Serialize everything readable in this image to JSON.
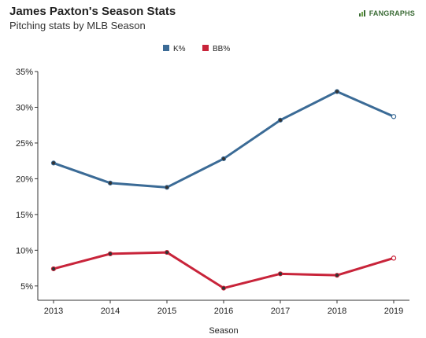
{
  "header": {
    "title": "James Paxton's Season Stats",
    "subtitle": "Pitching stats by MLB Season",
    "logo_text": "FANGRAPHS"
  },
  "chart_data": {
    "type": "line",
    "x": [
      2013,
      2014,
      2015,
      2016,
      2017,
      2018,
      2019
    ],
    "xlabel": "Season",
    "ylabel": "",
    "ylim": [
      0.03,
      0.35
    ],
    "yticks": [
      0.05,
      0.1,
      0.15,
      0.2,
      0.25,
      0.3,
      0.35
    ],
    "ytick_labels": [
      "5%",
      "10%",
      "15%",
      "20%",
      "25%",
      "30%",
      "35%"
    ],
    "legend_position": "top-center",
    "grid": false,
    "series": [
      {
        "name": "K%",
        "color": "#3b6b96",
        "values": [
          0.222,
          0.194,
          0.188,
          0.228,
          0.282,
          0.322,
          0.287
        ]
      },
      {
        "name": "BB%",
        "color": "#c8243a",
        "values": [
          0.074,
          0.095,
          0.097,
          0.047,
          0.067,
          0.065,
          0.089
        ]
      }
    ],
    "open_last_point": true
  }
}
